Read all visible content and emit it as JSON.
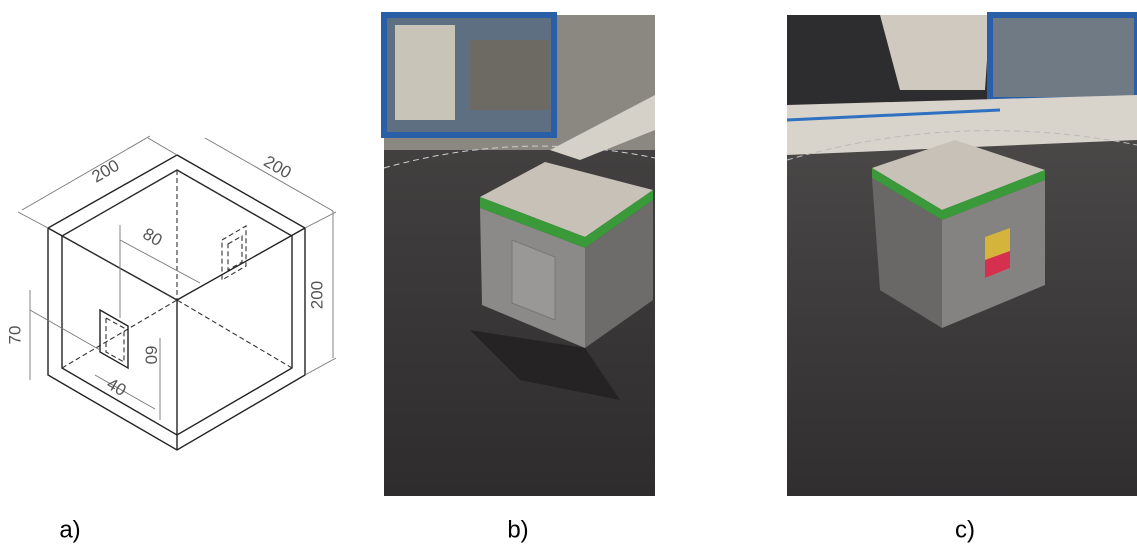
{
  "panels": [
    {
      "label": "a)",
      "dimensions": [
        "200",
        "200",
        "80",
        "200",
        "70",
        "60",
        "40"
      ]
    },
    {
      "label": "b)"
    },
    {
      "label": "c)"
    }
  ]
}
